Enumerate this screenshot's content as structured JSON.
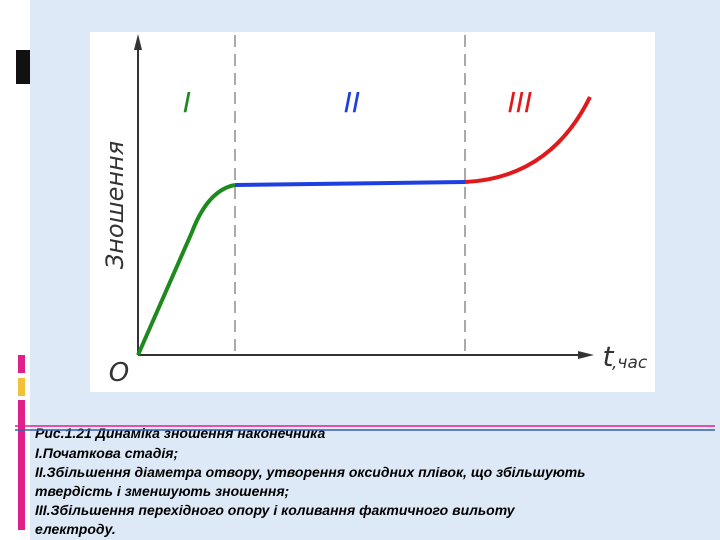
{
  "figure": {
    "y_axis_label": "Зношення",
    "origin_label": "O",
    "x_axis_label": "t",
    "x_axis_unit": ",час",
    "stages": [
      {
        "label": "I"
      },
      {
        "label": "II"
      },
      {
        "label": "III"
      }
    ]
  },
  "caption": {
    "lines": [
      "Рис.1.21 Динаміка зношення наконечника",
      "І.Початкова стадія;",
      "ІІ.Збільшення діаметра отвору, утворення оксидних плівок, що збільшують",
      "твердість і зменшують зношення;",
      "ІІІ.Збільшення перехідного опору і коливання фактичного вильоту",
      "електроду."
    ]
  }
}
